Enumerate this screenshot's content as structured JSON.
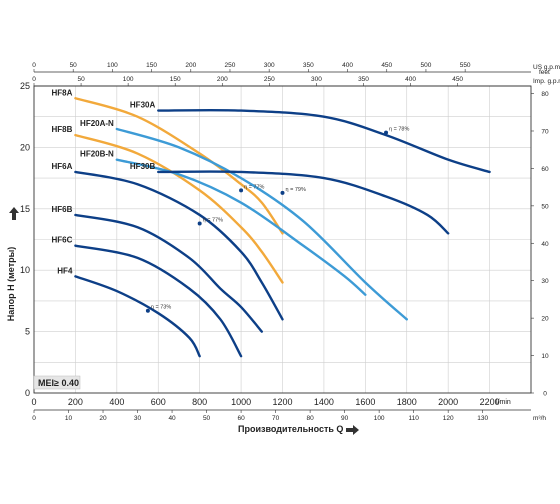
{
  "chart_data": {
    "type": "line",
    "xlabel": "Производительность Q",
    "ylabel": "Напор H (метры)",
    "xlim": [
      0,
      2400
    ],
    "ylim": [
      0,
      25
    ],
    "x_unit": "l/min",
    "x_ticks": [
      0,
      200,
      400,
      600,
      800,
      1000,
      1200,
      1400,
      1600,
      1800,
      2000,
      2200
    ],
    "y_ticks": [
      0,
      5,
      10,
      15,
      20,
      25
    ],
    "right_axis": {
      "unit": "feet",
      "ticks": [
        0,
        10,
        20,
        30,
        40,
        50,
        60,
        70,
        80
      ]
    },
    "top_axes": [
      {
        "unit": "US g.p.m.",
        "ticks": [
          0,
          50,
          100,
          150,
          200,
          250,
          300,
          350,
          400,
          450,
          500,
          550
        ]
      },
      {
        "unit": "Imp. g.p.m.",
        "ticks": [
          0,
          50,
          100,
          150,
          200,
          250,
          300,
          350,
          400,
          450
        ]
      }
    ],
    "bottom_axis_m3h": {
      "unit": "m³/h",
      "ticks": [
        0,
        10,
        20,
        30,
        40,
        50,
        60,
        70,
        80,
        90,
        100,
        110,
        120,
        130
      ]
    },
    "grid": true,
    "series": [
      {
        "name": "HF8A",
        "color": "#f2a93b",
        "x": [
          200,
          500,
          800,
          1000,
          1100,
          1200
        ],
        "y": [
          24,
          22.5,
          19.5,
          17,
          15.5,
          13
        ]
      },
      {
        "name": "HF8B",
        "color": "#f2a93b",
        "x": [
          200,
          500,
          800,
          1000,
          1100,
          1200
        ],
        "y": [
          21,
          19.5,
          16.5,
          13.5,
          11.5,
          9
        ]
      },
      {
        "name": "HF20A-N",
        "color": "#3d9bd6",
        "x": [
          400,
          700,
          1000,
          1300,
          1600,
          1800
        ],
        "y": [
          21.5,
          20,
          17.5,
          14,
          9,
          6
        ]
      },
      {
        "name": "HF20B-N",
        "color": "#3d9bd6",
        "x": [
          400,
          700,
          1000,
          1300,
          1500,
          1600
        ],
        "y": [
          19,
          17.8,
          15.5,
          12,
          9.5,
          8
        ]
      },
      {
        "name": "HF30A",
        "color": "#0d3f87",
        "x": [
          600,
          1000,
          1400,
          1700,
          2000,
          2200
        ],
        "y": [
          23,
          23,
          22.5,
          21,
          19,
          18
        ]
      },
      {
        "name": "HF30B",
        "color": "#0d3f87",
        "x": [
          600,
          1000,
          1400,
          1700,
          1900,
          2000
        ],
        "y": [
          18,
          18,
          17.5,
          16,
          14.5,
          13
        ]
      },
      {
        "name": "HF6A",
        "color": "#0d3f87",
        "x": [
          200,
          500,
          800,
          1000,
          1100,
          1200
        ],
        "y": [
          18,
          17,
          14.5,
          11.5,
          9,
          6
        ]
      },
      {
        "name": "HF6B",
        "color": "#0d3f87",
        "x": [
          200,
          500,
          750,
          900,
          1000,
          1100
        ],
        "y": [
          14.5,
          13.5,
          11,
          8.5,
          7,
          5
        ]
      },
      {
        "name": "HF6C",
        "color": "#0d3f87",
        "x": [
          200,
          500,
          750,
          900,
          1000
        ],
        "y": [
          12,
          11,
          8.5,
          6,
          3
        ]
      },
      {
        "name": "HF4",
        "color": "#0d3f87",
        "x": [
          200,
          400,
          600,
          750,
          800
        ],
        "y": [
          9.5,
          8.3,
          6.5,
          4.5,
          3
        ]
      }
    ],
    "efficiency_labels": [
      {
        "text": "η = 78%",
        "x": 1700,
        "y": 21.2
      },
      {
        "text": "η = 77%",
        "x": 1000,
        "y": 16.5
      },
      {
        "text": "η = 79%",
        "x": 1200,
        "y": 16.3
      },
      {
        "text": "η = 77%",
        "x": 800,
        "y": 13.8
      },
      {
        "text": "η = 73%",
        "x": 550,
        "y": 6.7
      }
    ],
    "badge": "MEI≥ 0.40"
  }
}
